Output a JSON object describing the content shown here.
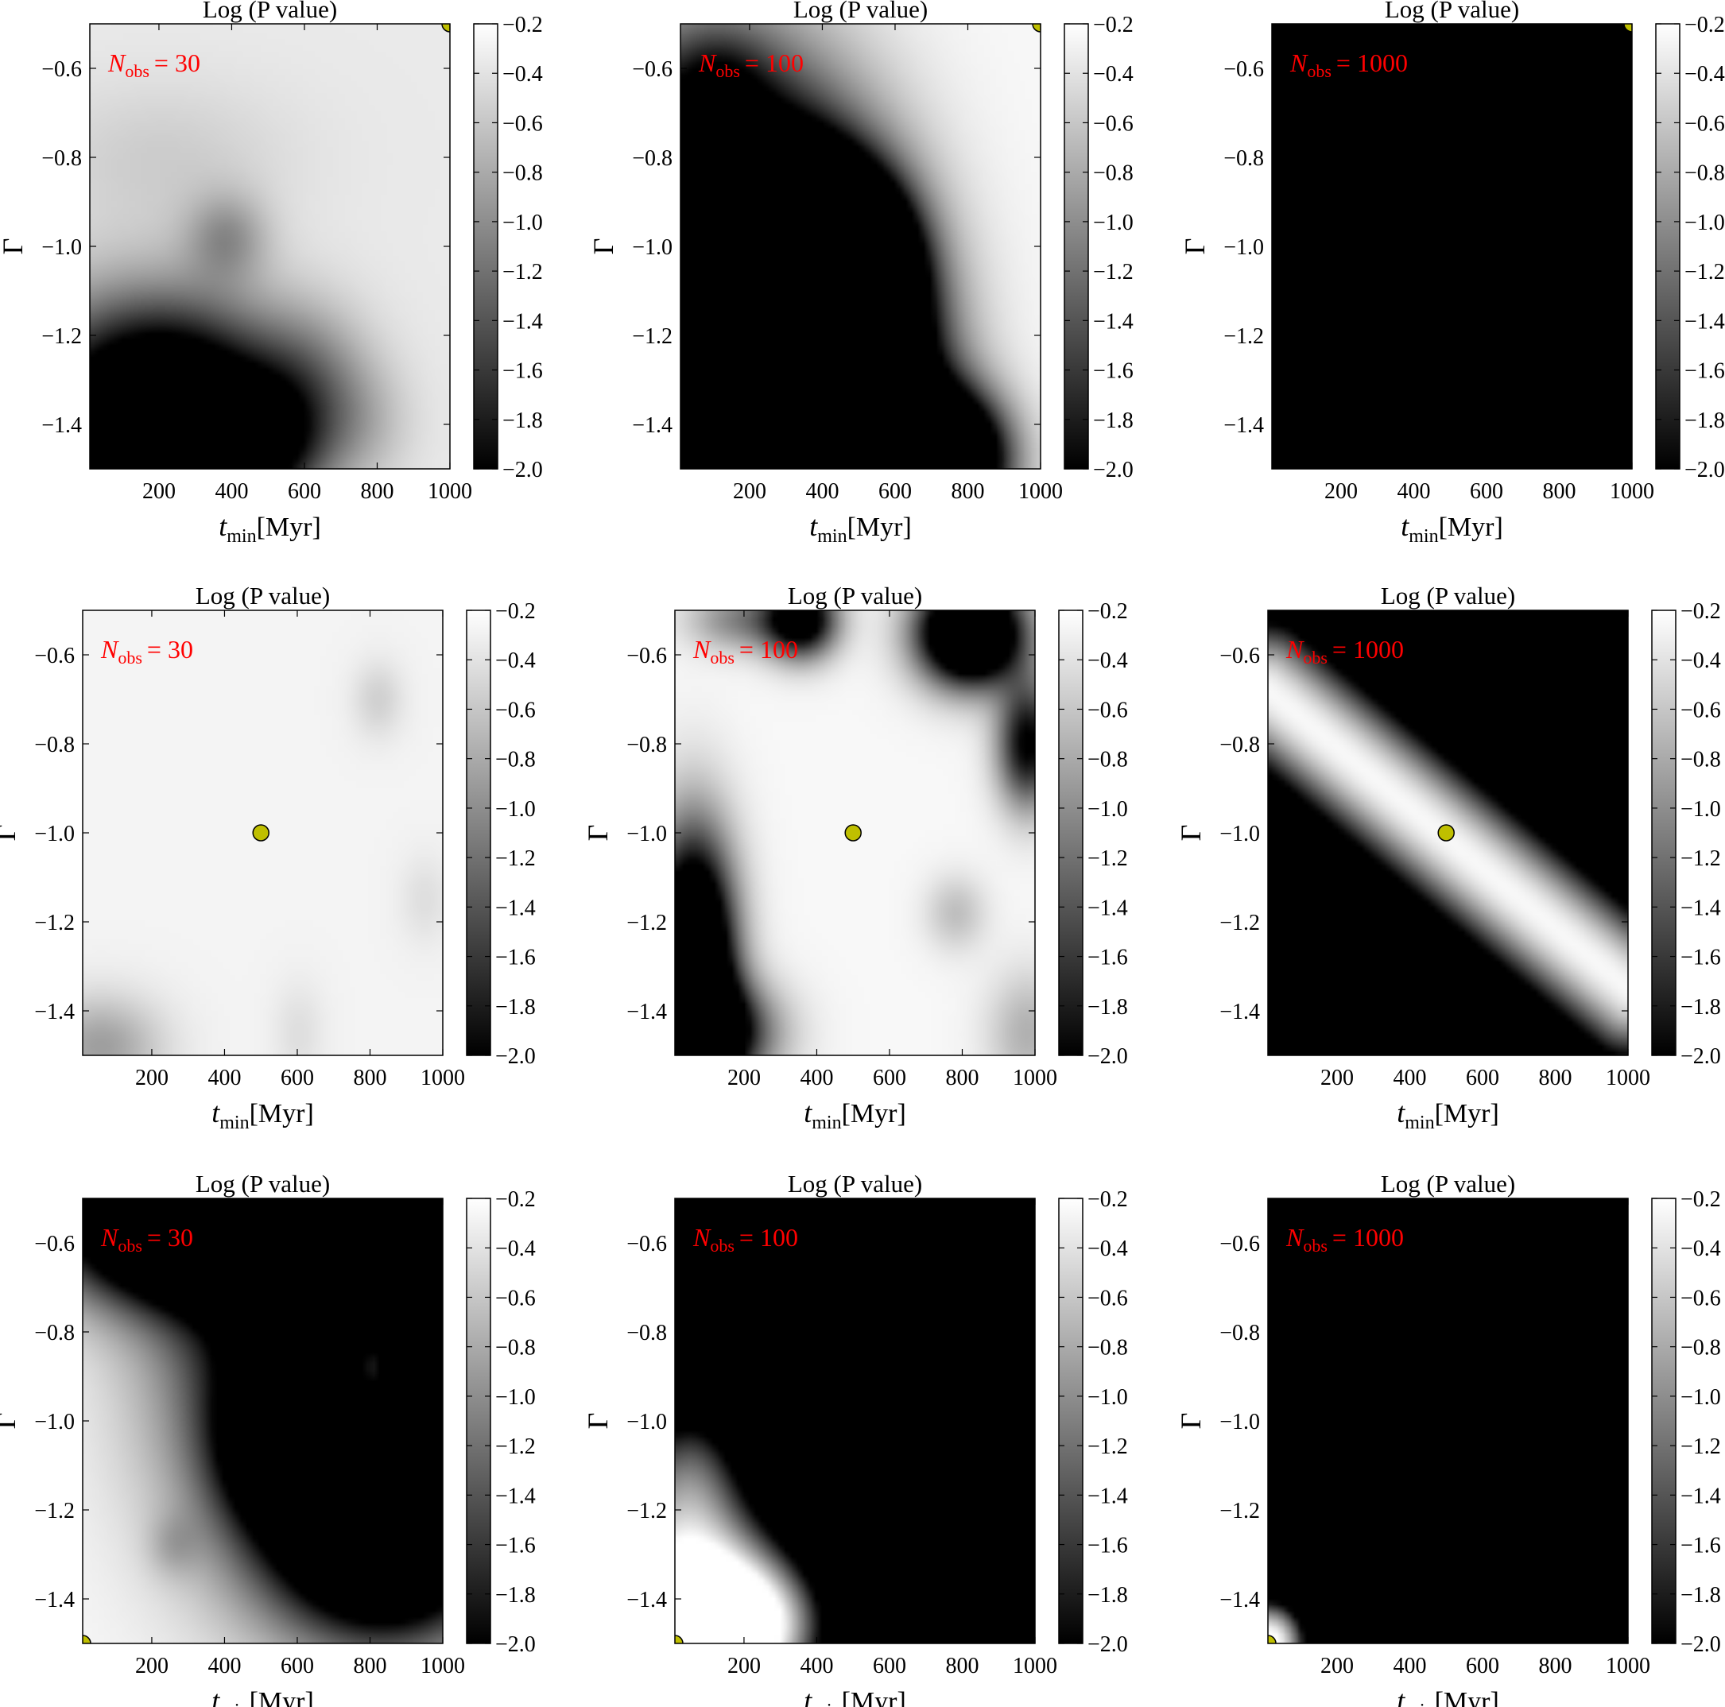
{
  "figure": {
    "rows": 3,
    "cols": 3
  },
  "chart_data": [
    {
      "type": "heatmap",
      "row": 0,
      "col": 0,
      "title": "Log (P value)",
      "xlabel": {
        "main": "t",
        "sub": "min",
        "unit": "[Myr]"
      },
      "ylabel": "Γ",
      "xlim": [
        10,
        1000
      ],
      "ylim": [
        -1.5,
        -0.5
      ],
      "xticks": [
        200,
        400,
        600,
        800,
        1000
      ],
      "yticks": [
        -0.6,
        -0.8,
        -1.0,
        -1.2,
        -1.4
      ],
      "colorbar": {
        "min": -2.0,
        "max": -0.2,
        "ticks": [
          -0.2,
          -0.4,
          -0.6,
          -0.8,
          -1.0,
          -1.2,
          -1.4,
          -1.6,
          -1.8,
          -2.0
        ]
      },
      "annotation": {
        "main": "N",
        "sub": "obs",
        "rest": "= 30"
      },
      "marker": {
        "x": 1000,
        "y": -0.5,
        "color": "#bfbf00"
      },
      "field": {
        "base": -0.35,
        "blobs": [
          {
            "x": 0.1,
            "y": -1.4,
            "sx": 0.22,
            "sy": 0.18,
            "a": -2.2
          },
          {
            "x": 0.3,
            "y": -1.35,
            "sx": 0.18,
            "sy": 0.15,
            "a": -1.2
          },
          {
            "x": 0.48,
            "y": -1.45,
            "sx": 0.12,
            "sy": 0.1,
            "a": -1.3
          },
          {
            "x": 0.6,
            "y": -1.3,
            "sx": 0.12,
            "sy": 0.12,
            "a": -0.6
          },
          {
            "x": 0.38,
            "y": -0.98,
            "sx": 0.08,
            "sy": 0.07,
            "a": -0.55
          },
          {
            "x": 0.2,
            "y": -0.8,
            "sx": 0.25,
            "sy": 0.12,
            "a": -0.2
          },
          {
            "x": 0.75,
            "y": -1.4,
            "sx": 0.1,
            "sy": 0.1,
            "a": -0.3
          }
        ]
      }
    },
    {
      "type": "heatmap",
      "row": 0,
      "col": 1,
      "title": "Log (P value)",
      "xlabel": {
        "main": "t",
        "sub": "min",
        "unit": "[Myr]"
      },
      "ylabel": "Γ",
      "xlim": [
        10,
        1000
      ],
      "ylim": [
        -1.5,
        -0.5
      ],
      "xticks": [
        200,
        400,
        600,
        800,
        1000
      ],
      "yticks": [
        -0.6,
        -0.8,
        -1.0,
        -1.2,
        -1.4
      ],
      "colorbar": {
        "min": -2.0,
        "max": -0.2,
        "ticks": [
          -0.2,
          -0.4,
          -0.6,
          -0.8,
          -1.0,
          -1.2,
          -1.4,
          -1.6,
          -1.8,
          -2.0
        ]
      },
      "annotation": {
        "main": "N",
        "sub": "obs",
        "rest": "= 100"
      },
      "marker": {
        "x": 1000,
        "y": -0.5,
        "color": "#bfbf00"
      },
      "field": {
        "base": -0.25,
        "blobs": [
          {
            "x": 0.1,
            "y": -1.2,
            "sx": 0.26,
            "sy": 0.35,
            "a": -6.0
          },
          {
            "x": 0.4,
            "y": -1.35,
            "sx": 0.18,
            "sy": 0.25,
            "a": -6.0
          },
          {
            "x": 0.5,
            "y": -1.05,
            "sx": 0.1,
            "sy": 0.12,
            "a": -3.0
          },
          {
            "x": 0.72,
            "y": -1.48,
            "sx": 0.12,
            "sy": 0.1,
            "a": -4.0
          },
          {
            "x": 0.35,
            "y": -0.95,
            "sx": 0.1,
            "sy": 0.1,
            "a": -3.0
          },
          {
            "x": 0.1,
            "y": -0.62,
            "sx": 0.1,
            "sy": 0.08,
            "a": -0.5
          }
        ]
      }
    },
    {
      "type": "heatmap",
      "row": 0,
      "col": 2,
      "title": "Log (P value)",
      "xlabel": {
        "main": "t",
        "sub": "min",
        "unit": "[Myr]"
      },
      "ylabel": "Γ",
      "xlim": [
        10,
        1000
      ],
      "ylim": [
        -1.5,
        -0.5
      ],
      "xticks": [
        200,
        400,
        600,
        800,
        1000
      ],
      "yticks": [
        -0.6,
        -0.8,
        -1.0,
        -1.2,
        -1.4
      ],
      "colorbar": {
        "min": -2.0,
        "max": -0.2,
        "ticks": [
          -0.2,
          -0.4,
          -0.6,
          -0.8,
          -1.0,
          -1.2,
          -1.4,
          -1.6,
          -1.8,
          -2.0
        ]
      },
      "annotation": {
        "main": "N",
        "sub": "obs",
        "rest": "= 1000"
      },
      "marker": {
        "x": 1000,
        "y": -0.5,
        "color": "#bfbf00"
      },
      "field": {
        "base": -0.2,
        "blobs": [
          {
            "x": 0.3,
            "y": -1.2,
            "sx": 0.4,
            "sy": 0.45,
            "a": -12.0
          },
          {
            "x": 0.75,
            "y": -1.3,
            "sx": 0.25,
            "sy": 0.3,
            "a": -10.0
          },
          {
            "x": 0.1,
            "y": -0.65,
            "sx": 0.15,
            "sy": 0.12,
            "a": -4.0
          },
          {
            "x": 0.6,
            "y": -0.9,
            "sx": 0.15,
            "sy": 0.12,
            "a": -4.0
          },
          {
            "x": 0.98,
            "y": -1.0,
            "sx": 0.15,
            "sy": 0.25,
            "a": -6.0
          }
        ]
      }
    },
    {
      "type": "heatmap",
      "row": 1,
      "col": 0,
      "title": "Log (P value)",
      "xlabel": {
        "main": "t",
        "sub": "min",
        "unit": "[Myr]"
      },
      "ylabel": "Γ",
      "xlim": [
        10,
        1000
      ],
      "ylim": [
        -1.5,
        -0.5
      ],
      "xticks": [
        200,
        400,
        600,
        800,
        1000
      ],
      "yticks": [
        -0.6,
        -0.8,
        -1.0,
        -1.2,
        -1.4
      ],
      "colorbar": {
        "min": -2.0,
        "max": -0.2,
        "ticks": [
          -0.2,
          -0.4,
          -0.6,
          -0.8,
          -1.0,
          -1.2,
          -1.4,
          -1.6,
          -1.8,
          -2.0
        ]
      },
      "annotation": {
        "main": "N",
        "sub": "obs",
        "rest": "= 30"
      },
      "marker": {
        "x": 500,
        "y": -1.0,
        "color": "#bfbf00"
      },
      "field": {
        "base": -0.28,
        "blobs": [
          {
            "x": 0.05,
            "y": -1.48,
            "sx": 0.12,
            "sy": 0.08,
            "a": -0.6
          },
          {
            "x": 0.82,
            "y": -0.7,
            "sx": 0.05,
            "sy": 0.06,
            "a": -0.25
          },
          {
            "x": 0.95,
            "y": -1.15,
            "sx": 0.05,
            "sy": 0.07,
            "a": -0.15
          },
          {
            "x": 0.6,
            "y": -1.45,
            "sx": 0.05,
            "sy": 0.08,
            "a": -0.15
          }
        ]
      }
    },
    {
      "type": "heatmap",
      "row": 1,
      "col": 1,
      "title": "Log (P value)",
      "xlabel": {
        "main": "t",
        "sub": "min",
        "unit": "[Myr]"
      },
      "ylabel": "Γ",
      "xlim": [
        10,
        1000
      ],
      "ylim": [
        -1.5,
        -0.5
      ],
      "xticks": [
        200,
        400,
        600,
        800,
        1000
      ],
      "yticks": [
        -0.6,
        -0.8,
        -1.0,
        -1.2,
        -1.4
      ],
      "colorbar": {
        "min": -2.0,
        "max": -0.2,
        "ticks": [
          -0.2,
          -0.4,
          -0.6,
          -0.8,
          -1.0,
          -1.2,
          -1.4,
          -1.6,
          -1.8,
          -2.0
        ]
      },
      "annotation": {
        "main": "N",
        "sub": "obs",
        "rest": "= 100"
      },
      "marker": {
        "x": 500,
        "y": -1.0,
        "color": "#bfbf00"
      },
      "field": {
        "base": -0.25,
        "blobs": [
          {
            "x": 0.05,
            "y": -1.3,
            "sx": 0.08,
            "sy": 0.2,
            "a": -3.5
          },
          {
            "x": 0.1,
            "y": -1.45,
            "sx": 0.12,
            "sy": 0.08,
            "a": -2.0
          },
          {
            "x": 0.35,
            "y": -0.52,
            "sx": 0.07,
            "sy": 0.06,
            "a": -2.2
          },
          {
            "x": 0.18,
            "y": -0.52,
            "sx": 0.1,
            "sy": 0.05,
            "a": -0.8
          },
          {
            "x": 0.82,
            "y": -0.55,
            "sx": 0.1,
            "sy": 0.08,
            "a": -3.5
          },
          {
            "x": 0.98,
            "y": -0.8,
            "sx": 0.06,
            "sy": 0.1,
            "a": -1.8
          },
          {
            "x": 0.98,
            "y": -1.45,
            "sx": 0.08,
            "sy": 0.1,
            "a": -0.5
          },
          {
            "x": 0.78,
            "y": -1.18,
            "sx": 0.06,
            "sy": 0.06,
            "a": -0.4
          }
        ]
      }
    },
    {
      "type": "heatmap",
      "row": 1,
      "col": 2,
      "title": "Log (P value)",
      "xlabel": {
        "main": "t",
        "sub": "min",
        "unit": "[Myr]"
      },
      "ylabel": "Γ",
      "xlim": [
        10,
        1000
      ],
      "ylim": [
        -1.5,
        -0.5
      ],
      "xticks": [
        200,
        400,
        600,
        800,
        1000
      ],
      "yticks": [
        -0.6,
        -0.8,
        -1.0,
        -1.2,
        -1.4
      ],
      "colorbar": {
        "min": -2.0,
        "max": -0.2,
        "ticks": [
          -0.2,
          -0.4,
          -0.6,
          -0.8,
          -1.0,
          -1.2,
          -1.4,
          -1.6,
          -1.8,
          -2.0
        ]
      },
      "annotation": {
        "main": "N",
        "sub": "obs",
        "rest": "= 1000"
      },
      "marker": {
        "x": 500,
        "y": -1.0,
        "color": "#bfbf00"
      },
      "field": {
        "band": {
          "x0": 0.0,
          "y0": -0.68,
          "x1": 1.0,
          "y1": -1.35,
          "width": 0.14,
          "a": -4.0
        },
        "base": -0.25,
        "blobs": [
          {
            "x": 0.1,
            "y": -0.73,
            "sx": 0.06,
            "sy": 0.06,
            "a": 0.0
          }
        ]
      }
    },
    {
      "type": "heatmap",
      "row": 2,
      "col": 0,
      "title": "Log (P value)",
      "xlabel": {
        "main": "t",
        "sub": "min",
        "unit": "[Myr]"
      },
      "ylabel": "Γ",
      "xlim": [
        10,
        1000
      ],
      "ylim": [
        -1.5,
        -0.5
      ],
      "xticks": [
        200,
        400,
        600,
        800,
        1000
      ],
      "yticks": [
        -0.6,
        -0.8,
        -1.0,
        -1.2,
        -1.4
      ],
      "colorbar": {
        "min": -2.0,
        "max": -0.2,
        "ticks": [
          -0.2,
          -0.4,
          -0.6,
          -0.8,
          -1.0,
          -1.2,
          -1.4,
          -1.6,
          -1.8,
          -2.0
        ]
      },
      "annotation": {
        "main": "N",
        "sub": "obs",
        "rest": "= 30"
      },
      "marker": {
        "x": 10,
        "y": -1.5,
        "color": "#bfbf00"
      },
      "field": {
        "base": -0.25,
        "blobs": [
          {
            "x": 0.75,
            "y": -0.8,
            "sx": 0.3,
            "sy": 0.35,
            "a": -3.5
          },
          {
            "x": 0.3,
            "y": -0.55,
            "sx": 0.25,
            "sy": 0.12,
            "a": -4.0
          },
          {
            "x": 0.85,
            "y": -1.25,
            "sx": 0.2,
            "sy": 0.15,
            "a": -3.0
          },
          {
            "x": 0.55,
            "y": -1.05,
            "sx": 0.12,
            "sy": 0.12,
            "a": -1.5
          },
          {
            "x": 0.25,
            "y": -1.28,
            "sx": 0.05,
            "sy": 0.05,
            "a": -0.3
          },
          {
            "x": 0.8,
            "y": -0.88,
            "sx": 0.04,
            "sy": 0.08,
            "a": 2.0
          },
          {
            "x": 0.45,
            "y": -1.35,
            "sx": 0.05,
            "sy": 0.05,
            "a": 0.0
          }
        ]
      }
    },
    {
      "type": "heatmap",
      "row": 2,
      "col": 1,
      "title": "Log (P value)",
      "xlabel": {
        "main": "t",
        "sub": "min",
        "unit": "[Myr]"
      },
      "ylabel": "Γ",
      "xlim": [
        10,
        1000
      ],
      "ylim": [
        -1.5,
        -0.5
      ],
      "xticks": [
        200,
        400,
        600,
        800,
        1000
      ],
      "yticks": [
        -0.6,
        -0.8,
        -1.0,
        -1.2,
        -1.4
      ],
      "colorbar": {
        "min": -2.0,
        "max": -0.2,
        "ticks": [
          -0.2,
          -0.4,
          -0.6,
          -0.8,
          -1.0,
          -1.2,
          -1.4,
          -1.6,
          -1.8,
          -2.0
        ]
      },
      "annotation": {
        "main": "N",
        "sub": "obs",
        "rest": "= 100"
      },
      "marker": {
        "x": 10,
        "y": -1.5,
        "color": "#bfbf00"
      },
      "field": {
        "base": -8.0,
        "blobs": [
          {
            "x": 0.0,
            "y": -1.5,
            "sx": 0.38,
            "sy": 0.45,
            "a": 8.0
          },
          {
            "x": 0.25,
            "y": -1.45,
            "sx": 0.2,
            "sy": 0.12,
            "a": 2.0
          },
          {
            "x": 0.05,
            "y": -1.05,
            "sx": 0.12,
            "sy": 0.15,
            "a": 1.5
          }
        ]
      }
    },
    {
      "type": "heatmap",
      "row": 2,
      "col": 2,
      "title": "Log (P value)",
      "xlabel": {
        "main": "t",
        "sub": "min",
        "unit": "[Myr]"
      },
      "ylabel": "Γ",
      "xlim": [
        10,
        1000
      ],
      "ylim": [
        -1.5,
        -0.5
      ],
      "xticks": [
        200,
        400,
        600,
        800,
        1000
      ],
      "yticks": [
        -0.6,
        -0.8,
        -1.0,
        -1.2,
        -1.4
      ],
      "colorbar": {
        "min": -2.0,
        "max": -0.2,
        "ticks": [
          -0.2,
          -0.4,
          -0.6,
          -0.8,
          -1.0,
          -1.2,
          -1.4,
          -1.6,
          -1.8,
          -2.0
        ]
      },
      "annotation": {
        "main": "N",
        "sub": "obs",
        "rest": "= 1000"
      },
      "marker": {
        "x": 10,
        "y": -1.5,
        "color": "#bfbf00"
      },
      "field": {
        "base": -10.0,
        "blobs": [
          {
            "x": 0.0,
            "y": -1.5,
            "sx": 0.15,
            "sy": 0.14,
            "a": 10.0
          }
        ]
      }
    }
  ]
}
